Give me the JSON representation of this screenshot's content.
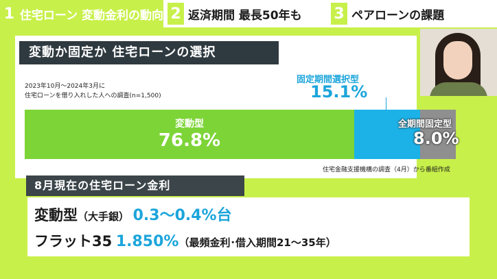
{
  "tabs": [
    {
      "num": "1",
      "label": "住宅ローン 変動金利の動向"
    },
    {
      "num": "2",
      "label": "返済期間 最長50年も"
    },
    {
      "num": "3",
      "label": "ペアローンの課題"
    }
  ],
  "card": {
    "title": "変動か固定か 住宅ローンの選択",
    "survey_line1": "2023年10月～2024年3月に",
    "survey_line2": "住宅ローンを借り入れした人への調査(n=1,500)",
    "source": "住宅金融支援機構の調査（4月）から番組作成"
  },
  "chart_data": {
    "type": "bar",
    "categories": [
      "変動型",
      "固定期間選択型",
      "全期間固定型"
    ],
    "values": [
      76.8,
      15.1,
      8.0
    ],
    "labels": [
      "76.8%",
      "15.1%",
      "8.0%"
    ],
    "colors": [
      "#7dd437",
      "#1cb2e8",
      "#8f8f8f"
    ]
  },
  "rates": {
    "title": "8月現在の住宅ローン金利",
    "line1": {
      "name": "変動型",
      "sub": "（大手銀）",
      "value": "0.3～0.4%台"
    },
    "line2": {
      "name": "フラット35",
      "value": "1.850%",
      "sub": "（最頻金利･借入期間21～35年）"
    }
  }
}
